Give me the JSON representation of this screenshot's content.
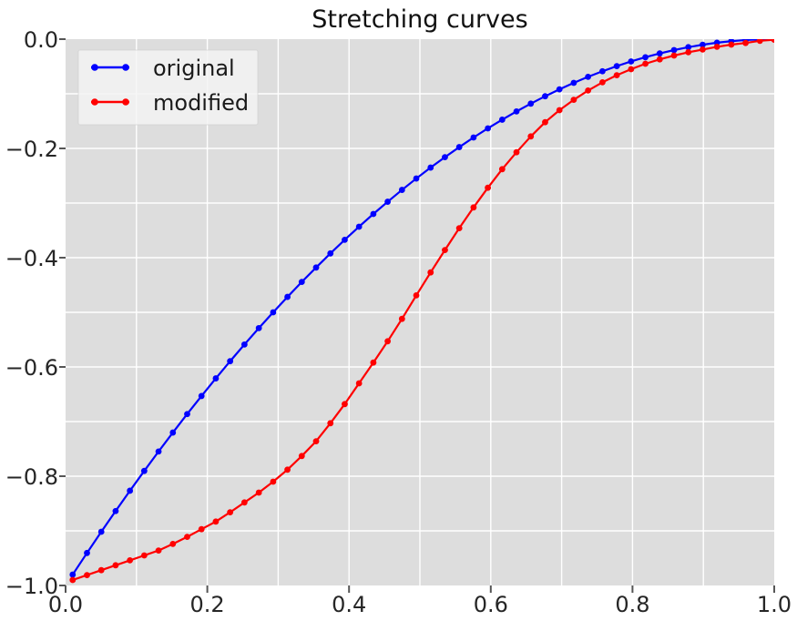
{
  "chart_data": {
    "type": "line",
    "title": "Stretching curves",
    "xlabel": "",
    "ylabel": "",
    "xlim": [
      0.0,
      1.0
    ],
    "ylim": [
      -1.0,
      0.0
    ],
    "grid": {
      "on": true,
      "spacing": 0.1,
      "color": "#ffffff"
    },
    "plot_bg_color": "#dddddd",
    "figure_bg_color": "#ffffff",
    "tick_mark_color": "#555555",
    "tick_label_color": "#262626",
    "title_color": "#111111",
    "legend": {
      "position": "upper left",
      "bg_color": "#f4f4f4",
      "entries": [
        {
          "label": "original",
          "color": "#0000ff"
        },
        {
          "label": "modified",
          "color": "#ff0000"
        }
      ]
    },
    "xticks": {
      "values": [
        0.0,
        0.2,
        0.4,
        0.6,
        0.8,
        1.0
      ],
      "labels": [
        "0.0",
        "0.2",
        "0.4",
        "0.6",
        "0.8",
        "1.0"
      ]
    },
    "yticks": {
      "values": [
        0.0,
        -0.2,
        -0.4,
        -0.6,
        -0.8,
        -1.0
      ],
      "labels": [
        "0.0",
        "−0.2",
        "−0.4",
        "−0.6",
        "−0.8",
        "−1.0"
      ]
    },
    "x": [
      0.01,
      0.0302,
      0.0504,
      0.0706,
      0.0908,
      0.111,
      0.1312,
      0.1514,
      0.1716,
      0.1918,
      0.212,
      0.2322,
      0.2524,
      0.2727,
      0.2929,
      0.3131,
      0.3333,
      0.3535,
      0.3737,
      0.3939,
      0.4141,
      0.4343,
      0.4545,
      0.4747,
      0.4949,
      0.5151,
      0.5353,
      0.5555,
      0.5757,
      0.5959,
      0.6161,
      0.6363,
      0.6565,
      0.6767,
      0.6969,
      0.7171,
      0.7373,
      0.7576,
      0.7778,
      0.798,
      0.8182,
      0.8384,
      0.8586,
      0.8788,
      0.899,
      0.9192,
      0.9394,
      0.9596,
      0.9798,
      1.0
    ],
    "series": [
      {
        "name": "original",
        "color": "#0000ff",
        "marker": "circle",
        "values": [
          -0.9801,
          -0.9405,
          -0.9017,
          -0.8638,
          -0.8266,
          -0.7903,
          -0.7548,
          -0.7201,
          -0.6862,
          -0.6532,
          -0.6209,
          -0.5895,
          -0.5589,
          -0.5289,
          -0.5,
          -0.4718,
          -0.4444,
          -0.418,
          -0.3922,
          -0.3673,
          -0.3433,
          -0.32,
          -0.2976,
          -0.2759,
          -0.2551,
          -0.2351,
          -0.216,
          -0.1976,
          -0.18,
          -0.1633,
          -0.1474,
          -0.1323,
          -0.118,
          -0.1045,
          -0.0919,
          -0.08,
          -0.069,
          -0.0588,
          -0.0494,
          -0.0408,
          -0.0331,
          -0.0261,
          -0.02,
          -0.0147,
          -0.0102,
          -0.0065,
          -0.0037,
          -0.0016,
          -0.0004,
          0.0
        ]
      },
      {
        "name": "modified",
        "color": "#ff0000",
        "marker": "circle",
        "values": [
          -0.99,
          -0.981,
          -0.972,
          -0.963,
          -0.954,
          -0.945,
          -0.936,
          -0.924,
          -0.911,
          -0.897,
          -0.883,
          -0.866,
          -0.848,
          -0.83,
          -0.81,
          -0.788,
          -0.763,
          -0.736,
          -0.703,
          -0.668,
          -0.63,
          -0.592,
          -0.553,
          -0.512,
          -0.469,
          -0.427,
          -0.386,
          -0.346,
          -0.308,
          -0.272,
          -0.238,
          -0.207,
          -0.178,
          -0.152,
          -0.13,
          -0.111,
          -0.094,
          -0.079,
          -0.066,
          -0.055,
          -0.045,
          -0.037,
          -0.03,
          -0.024,
          -0.019,
          -0.014,
          -0.01,
          -0.007,
          -0.003,
          -0.001
        ]
      }
    ]
  }
}
